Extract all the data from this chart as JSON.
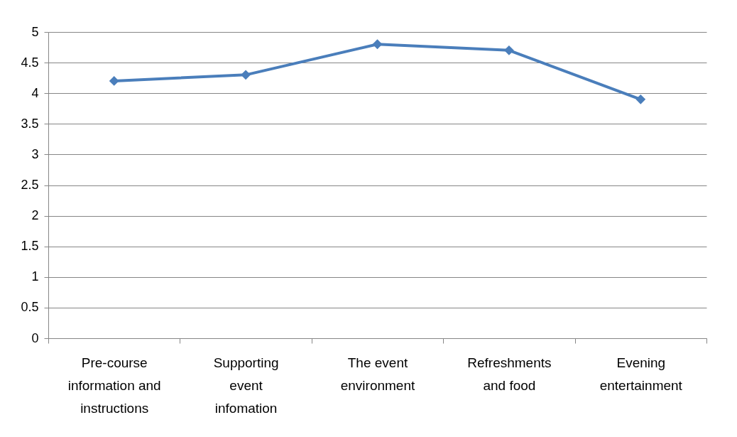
{
  "chart_data": {
    "type": "line",
    "categories": [
      "Pre-course information and instructions",
      "Supporting event infomation",
      "The event environment",
      "Refreshments and food",
      "Evening entertainment"
    ],
    "series": [
      {
        "color": "#4a7ebb",
        "values": [
          4.2,
          4.3,
          4.8,
          4.7,
          3.9
        ]
      }
    ],
    "ylim": [
      0,
      5
    ],
    "yticks": [
      0,
      0.5,
      1,
      1.5,
      2,
      2.5,
      3,
      3.5,
      4,
      4.5,
      5
    ],
    "grid": "y",
    "legend": false,
    "marker": "diamond",
    "line_style": "solid"
  }
}
